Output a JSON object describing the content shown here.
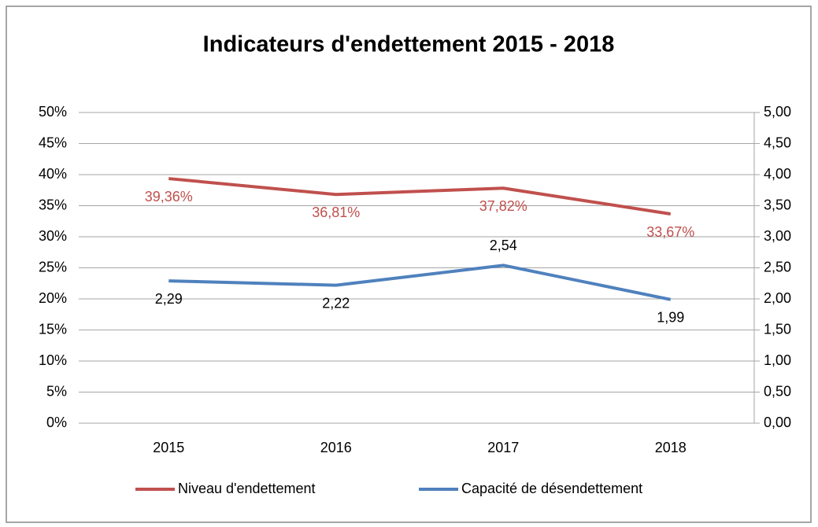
{
  "chart_data": {
    "type": "line",
    "title": "Indicateurs d'endettement 2015 - 2018",
    "categories": [
      "2015",
      "2016",
      "2017",
      "2018"
    ],
    "series": [
      {
        "name": "Niveau d'endettement",
        "color": "#c0504d",
        "values": [
          39.36,
          36.81,
          37.82,
          33.67
        ],
        "value_labels": [
          "39,36%",
          "36,81%",
          "37,82%",
          "33,67%"
        ]
      },
      {
        "name": "Capacité de désendettement",
        "color": "#4f81bd",
        "axis": "y2",
        "values": [
          2.29,
          2.22,
          2.54,
          1.99
        ],
        "value_labels": [
          "2,29",
          "2,22",
          "2,54",
          "1,99"
        ]
      }
    ],
    "ylim": [
      0,
      50
    ],
    "yticks": [
      {
        "value": 0,
        "label": "0%"
      },
      {
        "value": 5,
        "label": "5%"
      },
      {
        "value": 10,
        "label": "10%"
      },
      {
        "value": 15,
        "label": "15%"
      },
      {
        "value": 20,
        "label": "20%"
      },
      {
        "value": 25,
        "label": "25%"
      },
      {
        "value": 30,
        "label": "30%"
      },
      {
        "value": 35,
        "label": "35%"
      },
      {
        "value": 40,
        "label": "40%"
      },
      {
        "value": 45,
        "label": "45%"
      },
      {
        "value": 50,
        "label": "50%"
      }
    ],
    "y2lim": [
      0,
      5
    ],
    "y2ticks": [
      {
        "value": 0,
        "label": "0,00"
      },
      {
        "value": 0.5,
        "label": "0,50"
      },
      {
        "value": 1,
        "label": "1,00"
      },
      {
        "value": 1.5,
        "label": "1,50"
      },
      {
        "value": 2,
        "label": "2,00"
      },
      {
        "value": 2.5,
        "label": "2,50"
      },
      {
        "value": 3,
        "label": "3,00"
      },
      {
        "value": 3.5,
        "label": "3,50"
      },
      {
        "value": 4,
        "label": "4,00"
      },
      {
        "value": 4.5,
        "label": "4,50"
      },
      {
        "value": 5,
        "label": "5,00"
      }
    ],
    "grid": true,
    "legend": "bottom"
  }
}
